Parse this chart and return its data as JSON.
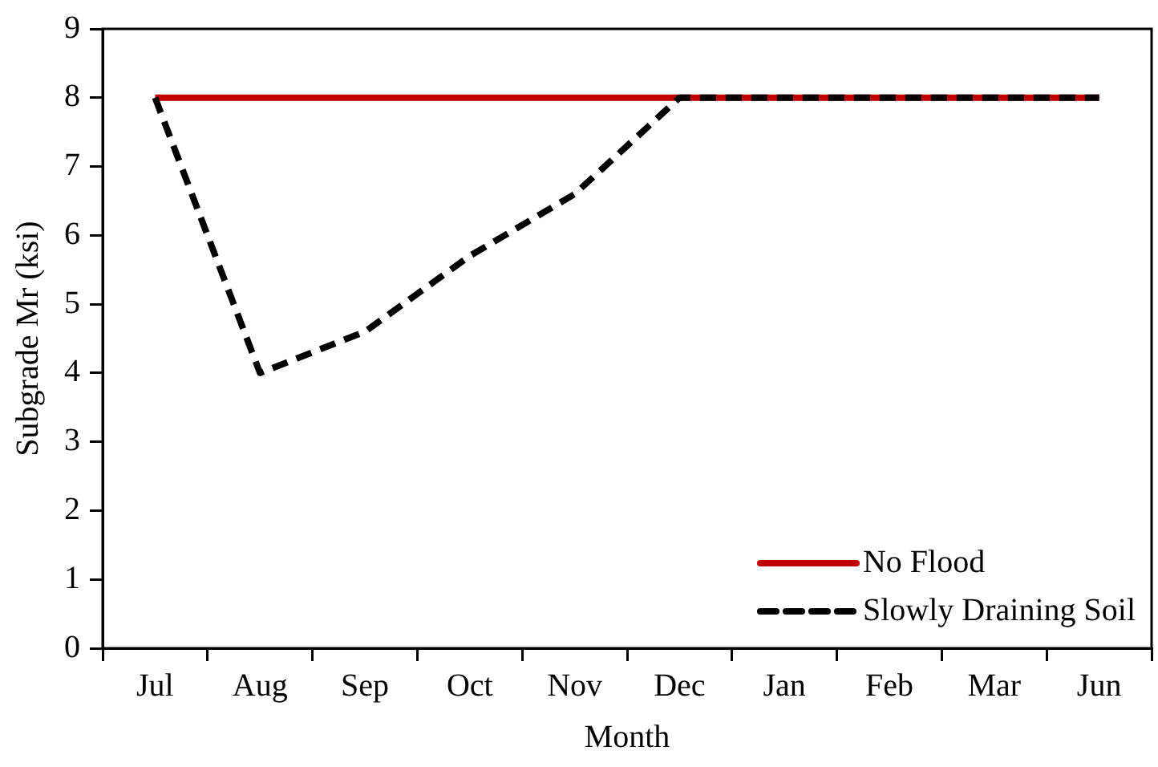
{
  "chart_data": {
    "type": "line",
    "xlabel": "Month",
    "ylabel": "Subgrade Mr (ksi)",
    "categories": [
      "Jul",
      "Aug",
      "Sep",
      "Oct",
      "Nov",
      "Dec",
      "Jan",
      "Feb",
      "Mar",
      "Jun"
    ],
    "series": [
      {
        "name": "No Flood",
        "color": "#c00000",
        "line_style": "solid",
        "values": [
          8,
          8,
          8,
          8,
          8,
          8,
          8,
          8,
          8,
          8
        ]
      },
      {
        "name": "Slowly Draining Soil",
        "color": "#000000",
        "line_style": "dashed",
        "values": [
          8,
          4,
          4.6,
          5.7,
          6.6,
          8,
          8,
          8,
          8,
          8
        ]
      }
    ],
    "ylim": [
      0,
      9
    ],
    "yticks": [
      0,
      1,
      2,
      3,
      4,
      5,
      6,
      7,
      8,
      9
    ],
    "grid": false,
    "legend": "bottom right",
    "marker": "none"
  }
}
